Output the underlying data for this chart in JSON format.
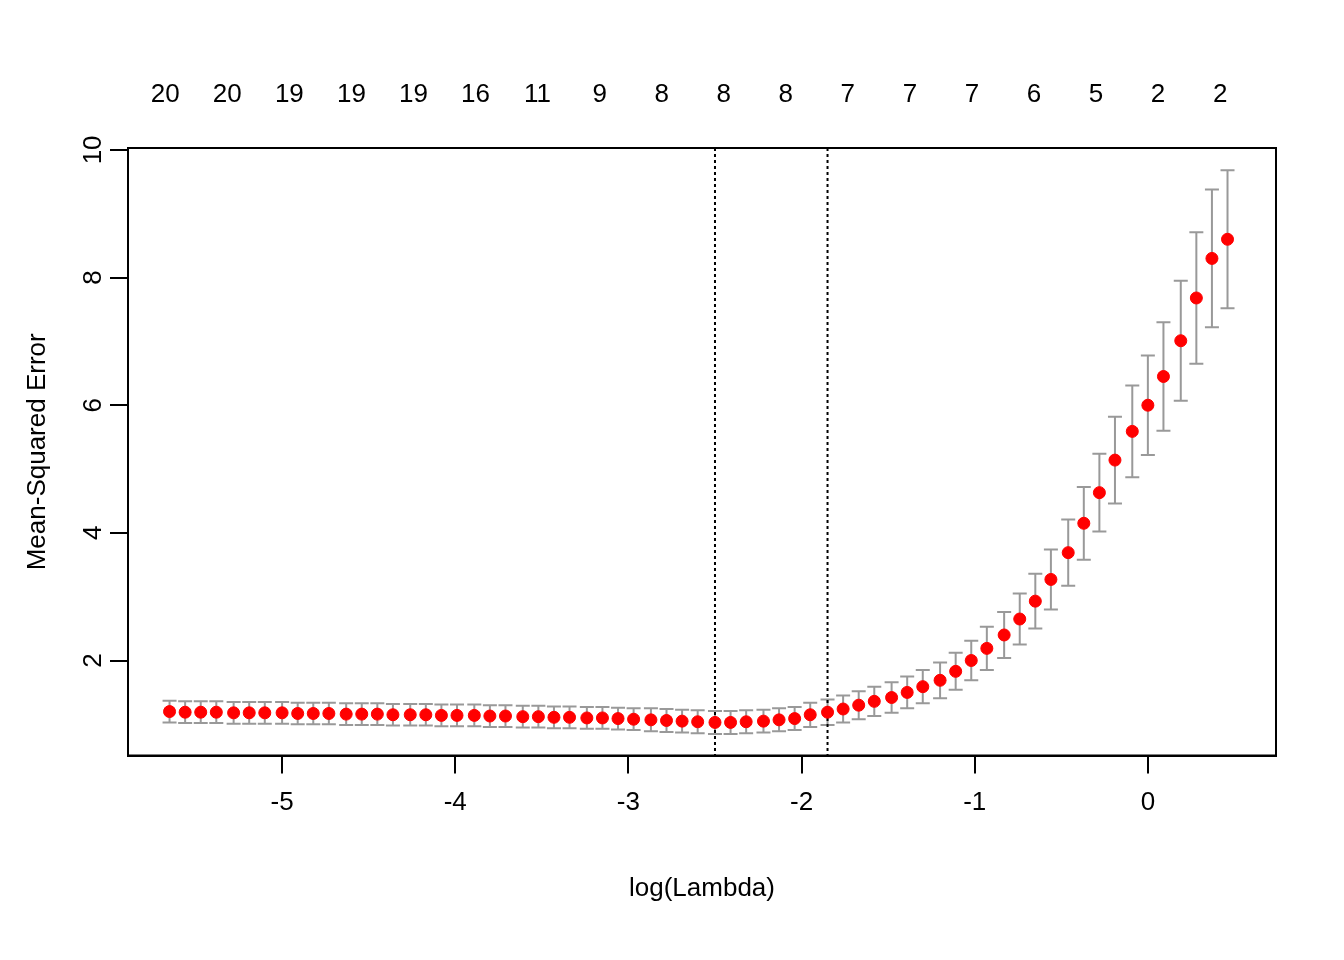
{
  "chart_data": {
    "type": "scatter",
    "xlabel": "log(Lambda)",
    "ylabel": "Mean-Squared Error",
    "xlim": [
      -5.89,
      0.74
    ],
    "xticks": [
      -5,
      -4,
      -3,
      -2,
      -1,
      0
    ],
    "ylim": [
      0.51,
      10.03
    ],
    "yticks": [
      2,
      4,
      6,
      8,
      10
    ],
    "annotations": [
      "20",
      "20",
      "19",
      "19",
      "19",
      "16",
      "11",
      "9",
      "8",
      "8",
      "8",
      "7",
      "7",
      "7",
      "6",
      "5",
      "2",
      "2"
    ],
    "grid": false,
    "legend": false,
    "marker": "circle",
    "ref_lines": [
      {
        "axis": "x",
        "value": -2.5,
        "color": "#000000",
        "line_style": "dotted"
      },
      {
        "axis": "x",
        "value": -1.85,
        "color": "#000000",
        "line_style": "dotted"
      }
    ],
    "series": [
      {
        "color": "#ff0000",
        "x": [
          -5.65,
          -5.56,
          -5.47,
          -5.38,
          -5.28,
          -5.19,
          -5.1,
          -5.0,
          -4.91,
          -4.82,
          -4.73,
          -4.63,
          -4.54,
          -4.45,
          -4.36,
          -4.26,
          -4.17,
          -4.08,
          -3.99,
          -3.89,
          -3.8,
          -3.71,
          -3.61,
          -3.52,
          -3.43,
          -3.34,
          -3.24,
          -3.15,
          -3.06,
          -2.97,
          -2.87,
          -2.78,
          -2.69,
          -2.6,
          -2.5,
          -2.41,
          -2.32,
          -2.22,
          -2.13,
          -2.04,
          -1.95,
          -1.85,
          -1.76,
          -1.67,
          -1.58,
          -1.48,
          -1.39,
          -1.3,
          -1.2,
          -1.11,
          -1.02,
          -0.93,
          -0.83,
          -0.74,
          -0.65,
          -0.56,
          -0.46,
          -0.37,
          -0.28,
          -0.19,
          -0.09,
          0.0,
          0.09,
          0.19,
          0.28,
          0.37,
          0.46
        ],
        "values": [
          1.2,
          1.19,
          1.19,
          1.19,
          1.18,
          1.18,
          1.18,
          1.18,
          1.17,
          1.17,
          1.17,
          1.16,
          1.16,
          1.16,
          1.15,
          1.15,
          1.15,
          1.14,
          1.14,
          1.14,
          1.13,
          1.13,
          1.12,
          1.12,
          1.11,
          1.11,
          1.1,
          1.1,
          1.09,
          1.08,
          1.07,
          1.06,
          1.05,
          1.04,
          1.03,
          1.03,
          1.04,
          1.05,
          1.07,
          1.09,
          1.15,
          1.19,
          1.24,
          1.3,
          1.36,
          1.42,
          1.5,
          1.59,
          1.69,
          1.83,
          2.0,
          2.19,
          2.4,
          2.65,
          2.93,
          3.27,
          3.69,
          4.15,
          4.63,
          5.14,
          5.59,
          6.0,
          6.45,
          7.01,
          7.68,
          8.3,
          8.6
        ],
        "errors": [
          0.17,
          0.17,
          0.17,
          0.17,
          0.17,
          0.17,
          0.17,
          0.17,
          0.17,
          0.17,
          0.17,
          0.17,
          0.17,
          0.17,
          0.17,
          0.17,
          0.17,
          0.17,
          0.17,
          0.17,
          0.17,
          0.17,
          0.17,
          0.17,
          0.17,
          0.17,
          0.17,
          0.17,
          0.17,
          0.17,
          0.18,
          0.18,
          0.18,
          0.18,
          0.18,
          0.18,
          0.18,
          0.18,
          0.18,
          0.18,
          0.19,
          0.2,
          0.21,
          0.22,
          0.23,
          0.24,
          0.25,
          0.26,
          0.28,
          0.29,
          0.31,
          0.34,
          0.36,
          0.4,
          0.43,
          0.47,
          0.52,
          0.57,
          0.61,
          0.68,
          0.72,
          0.78,
          0.85,
          0.94,
          1.03,
          1.08,
          1.08
        ]
      }
    ]
  }
}
